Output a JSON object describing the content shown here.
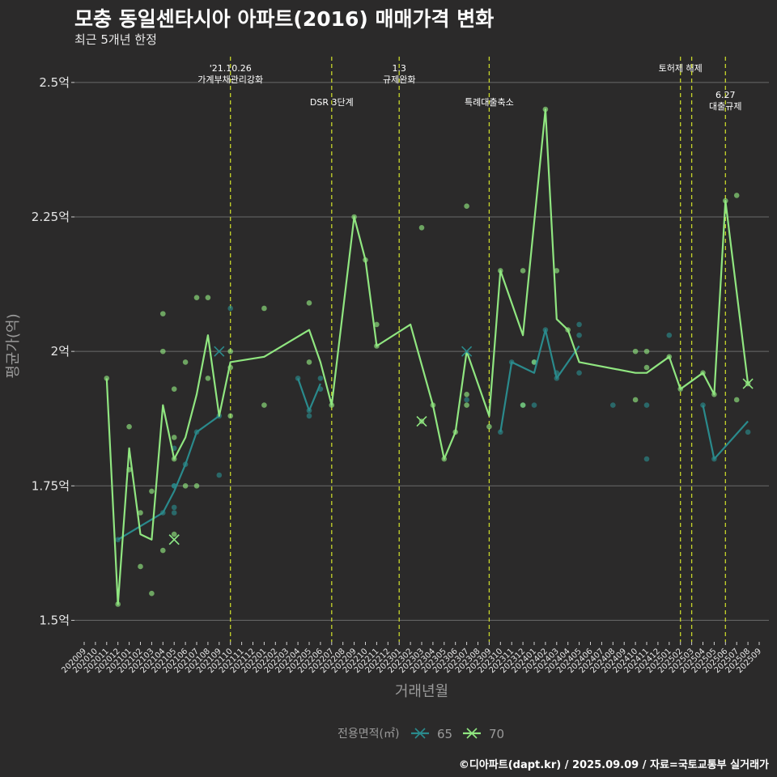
{
  "title": "모충 동일센타시아 아파트(2016) 매매가격 변화",
  "subtitle": "최근 5개년 한정",
  "caption": "©디아파트(dapt.kr) / 2025.09.09 / 자료=국토교통부 실거래가",
  "chart_data": {
    "type": "line",
    "xlabel": "거래년월",
    "ylabel": "평균가(억)",
    "ylim": [
      1.46,
      2.56
    ],
    "yticks": [
      1.5,
      1.75,
      2.0,
      2.25,
      2.5
    ],
    "ytick_labels": [
      "1.5억",
      "1.75억",
      "2억",
      "2.25억",
      "2.5억"
    ],
    "x_months": [
      "202009",
      "202010",
      "202011",
      "202012",
      "202101",
      "202102",
      "202103",
      "202104",
      "202105",
      "202106",
      "202107",
      "202108",
      "202109",
      "202110",
      "202111",
      "202112",
      "202201",
      "202202",
      "202203",
      "202204",
      "202205",
      "202206",
      "202207",
      "202208",
      "202209",
      "202210",
      "202211",
      "202212",
      "202301",
      "202302",
      "202303",
      "202304",
      "202305",
      "202306",
      "202307",
      "202308",
      "202309",
      "202310",
      "202311",
      "202312",
      "202401",
      "202402",
      "202403",
      "202404",
      "202405",
      "202406",
      "202407",
      "202408",
      "202409",
      "202410",
      "202411",
      "202412",
      "202501",
      "202502",
      "202503",
      "202504",
      "202505",
      "202506",
      "202507",
      "202508",
      "202509"
    ],
    "grid": true,
    "legend_title": "전용면적(㎡)",
    "legend_position": "bottom",
    "colors": {
      "65": "#2a8a8c",
      "70": "#90e680",
      "vline": "#c8d62a",
      "grid": "#6a6a6a",
      "background": "#2b2a2a"
    },
    "events": [
      {
        "x": "202110",
        "label": "'21.10.26\n가계부채관리강화",
        "level": 0
      },
      {
        "x": "202207",
        "label": "DSR 3단계",
        "level": 1
      },
      {
        "x": "202301",
        "label": "1.3\n규제완화",
        "level": 0
      },
      {
        "x": "202309",
        "label": "특례대출축소",
        "level": 1
      },
      {
        "x": "202502",
        "label": "토허제 해제",
        "level": 0
      },
      {
        "x": "202503",
        "label": "",
        "level": 0
      },
      {
        "x": "202506",
        "label": "6.27\n대출규제",
        "level": 2
      }
    ],
    "series": [
      {
        "name": "65",
        "segments": [
          [
            [
              "202012",
              1.65
            ],
            [
              "202104",
              1.7
            ],
            [
              "202105",
              1.74
            ],
            [
              "202106",
              1.79
            ],
            [
              "202107",
              1.85
            ],
            [
              "202109",
              1.88
            ]
          ],
          [
            [
              "202204",
              1.95
            ],
            [
              "202205",
              1.89
            ],
            [
              "202206",
              1.94
            ]
          ],
          [
            [
              "202310",
              1.85
            ],
            [
              "202311",
              1.98
            ],
            [
              "202401",
              1.96
            ],
            [
              "202402",
              2.04
            ],
            [
              "202403",
              1.95
            ],
            [
              "202405",
              2.01
            ]
          ],
          [
            [
              "202504",
              1.9
            ],
            [
              "202505",
              1.8
            ],
            [
              "202508",
              1.87
            ]
          ]
        ],
        "points": [
          [
            "202012",
            1.65
          ],
          [
            "202104",
            1.7
          ],
          [
            "202105",
            1.75
          ],
          [
            "202105",
            1.71
          ],
          [
            "202105",
            1.7
          ],
          [
            "202105",
            1.75
          ],
          [
            "202105",
            1.82
          ],
          [
            "202106",
            1.79
          ],
          [
            "202107",
            1.85
          ],
          [
            "202109",
            1.77
          ],
          [
            "202109",
            1.88
          ],
          [
            "202110",
            2.08
          ],
          [
            "202204",
            1.95
          ],
          [
            "202205",
            1.88
          ],
          [
            "202205",
            1.89
          ],
          [
            "202206",
            1.93
          ],
          [
            "202206",
            1.95
          ],
          [
            "202307",
            1.91
          ],
          [
            "202310",
            1.85
          ],
          [
            "202311",
            1.98
          ],
          [
            "202312",
            1.9
          ],
          [
            "202401",
            1.9
          ],
          [
            "202401",
            1.98
          ],
          [
            "202402",
            2.04
          ],
          [
            "202403",
            1.95
          ],
          [
            "202403",
            1.96
          ],
          [
            "202405",
            1.96
          ],
          [
            "202405",
            2.03
          ],
          [
            "202405",
            2.05
          ],
          [
            "202408",
            1.9
          ],
          [
            "202411",
            1.8
          ],
          [
            "202411",
            1.9
          ],
          [
            "202501",
            2.03
          ],
          [
            "202504",
            1.9
          ],
          [
            "202505",
            1.8
          ],
          [
            "202508",
            1.85
          ]
        ],
        "crosses": [
          [
            "202109",
            2.0
          ],
          [
            "202105",
            1.65
          ],
          [
            "202307",
            2.0
          ]
        ]
      },
      {
        "name": "70",
        "segments": [
          [
            [
              "202011",
              1.95
            ],
            [
              "202012",
              1.53
            ],
            [
              "202101",
              1.82
            ],
            [
              "202102",
              1.66
            ],
            [
              "202103",
              1.65
            ],
            [
              "202104",
              1.9
            ],
            [
              "202105",
              1.8
            ],
            [
              "202106",
              1.84
            ],
            [
              "202107",
              1.92
            ],
            [
              "202108",
              2.03
            ],
            [
              "202109",
              1.88
            ],
            [
              "202110",
              1.98
            ],
            [
              "202201",
              1.99
            ],
            [
              "202205",
              2.04
            ],
            [
              "202206",
              1.98
            ],
            [
              "202207",
              1.9
            ],
            [
              "202209",
              2.25
            ],
            [
              "202210",
              2.17
            ],
            [
              "202211",
              2.01
            ],
            [
              "202302",
              2.05
            ],
            [
              "202304",
              1.9
            ],
            [
              "202305",
              1.8
            ],
            [
              "202306",
              1.85
            ],
            [
              "202307",
              2.0
            ],
            [
              "202309",
              1.88
            ],
            [
              "202310",
              2.15
            ],
            [
              "202312",
              2.03
            ],
            [
              "202402",
              2.45
            ],
            [
              "202403",
              2.06
            ],
            [
              "202404",
              2.04
            ],
            [
              "202405",
              1.98
            ],
            [
              "202410",
              1.96
            ],
            [
              "202411",
              1.96
            ],
            [
              "202501",
              1.99
            ],
            [
              "202502",
              1.93
            ],
            [
              "202504",
              1.96
            ],
            [
              "202505",
              1.92
            ],
            [
              "202506",
              2.28
            ],
            [
              "202508",
              1.94
            ]
          ]
        ],
        "points": [
          [
            "202011",
            1.95
          ],
          [
            "202012",
            1.53
          ],
          [
            "202101",
            1.86
          ],
          [
            "202101",
            1.78
          ],
          [
            "202102",
            1.7
          ],
          [
            "202102",
            1.6
          ],
          [
            "202103",
            1.55
          ],
          [
            "202103",
            1.74
          ],
          [
            "202104",
            1.63
          ],
          [
            "202104",
            2.07
          ],
          [
            "202104",
            2.0
          ],
          [
            "202105",
            1.84
          ],
          [
            "202105",
            1.93
          ],
          [
            "202105",
            1.66
          ],
          [
            "202105",
            1.8
          ],
          [
            "202106",
            1.75
          ],
          [
            "202106",
            1.98
          ],
          [
            "202107",
            1.75
          ],
          [
            "202107",
            2.1
          ],
          [
            "202108",
            1.95
          ],
          [
            "202108",
            2.1
          ],
          [
            "202110",
            2.0
          ],
          [
            "202110",
            1.97
          ],
          [
            "202110",
            1.88
          ],
          [
            "202201",
            2.08
          ],
          [
            "202201",
            1.9
          ],
          [
            "202205",
            1.98
          ],
          [
            "202205",
            2.09
          ],
          [
            "202207",
            1.9
          ],
          [
            "202209",
            2.25
          ],
          [
            "202210",
            2.17
          ],
          [
            "202211",
            2.05
          ],
          [
            "202211",
            2.01
          ],
          [
            "202303",
            2.23
          ],
          [
            "202303",
            1.87
          ],
          [
            "202304",
            1.9
          ],
          [
            "202305",
            1.8
          ],
          [
            "202306",
            1.85
          ],
          [
            "202307",
            2.27
          ],
          [
            "202307",
            1.92
          ],
          [
            "202307",
            1.9
          ],
          [
            "202309",
            1.86
          ],
          [
            "202310",
            2.15
          ],
          [
            "202312",
            2.15
          ],
          [
            "202312",
            1.9
          ],
          [
            "202401",
            1.98
          ],
          [
            "202402",
            2.45
          ],
          [
            "202403",
            2.15
          ],
          [
            "202404",
            2.04
          ],
          [
            "202410",
            1.91
          ],
          [
            "202410",
            2.0
          ],
          [
            "202411",
            2.0
          ],
          [
            "202411",
            1.97
          ],
          [
            "202501",
            1.99
          ],
          [
            "202502",
            1.93
          ],
          [
            "202504",
            1.96
          ],
          [
            "202505",
            1.92
          ],
          [
            "202506",
            2.28
          ],
          [
            "202507",
            2.29
          ],
          [
            "202507",
            1.91
          ],
          [
            "202508",
            1.94
          ]
        ],
        "crosses": [
          [
            "202105",
            1.65
          ],
          [
            "202303",
            1.87
          ],
          [
            "202508",
            1.94
          ]
        ]
      }
    ]
  }
}
